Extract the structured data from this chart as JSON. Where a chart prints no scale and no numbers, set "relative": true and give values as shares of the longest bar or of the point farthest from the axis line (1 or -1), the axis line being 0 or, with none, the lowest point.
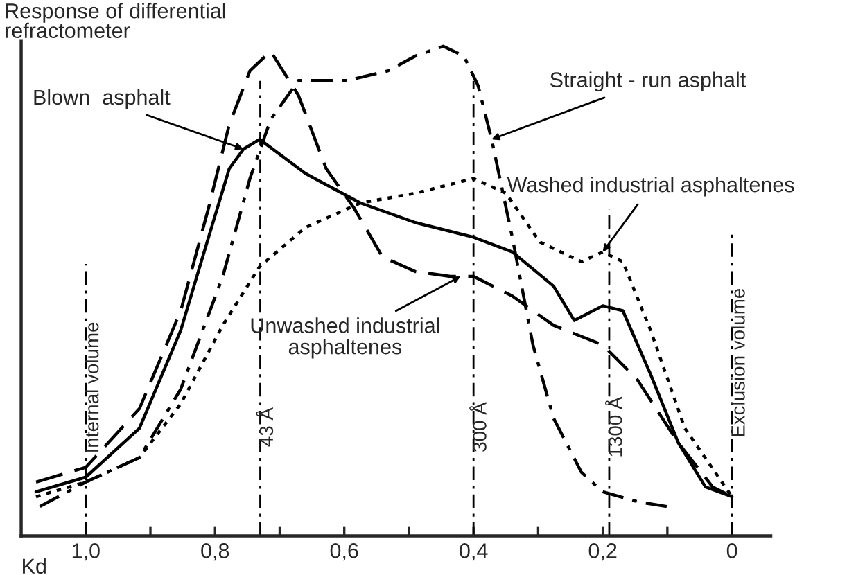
{
  "chart_data": {
    "type": "line",
    "relative": true,
    "xlabel": "Kd",
    "ylabel": "Response of differential\nrefractometer",
    "xlim": [
      1.1,
      -0.06
    ],
    "xticks": [
      {
        "value": 1.0,
        "label": "1,0"
      },
      {
        "value": 0.9,
        "label": null
      },
      {
        "value": 0.8,
        "label": "0,8"
      },
      {
        "value": 0.7,
        "label": null
      },
      {
        "value": 0.6,
        "label": "0,6"
      },
      {
        "value": 0.5,
        "label": null
      },
      {
        "value": 0.4,
        "label": "0,4"
      },
      {
        "value": 0.3,
        "label": null
      },
      {
        "value": 0.2,
        "label": "0,2"
      },
      {
        "value": 0.1,
        "label": null
      },
      {
        "value": 0,
        "label": "0"
      }
    ],
    "grid": false,
    "legend": false,
    "series": [
      {
        "color": "#000000",
        "line_style": "solid",
        "x": [
          1.077,
          1.0,
          0.917,
          0.853,
          0.81,
          0.778,
          0.756,
          0.731,
          0.66,
          0.575,
          0.49,
          0.4,
          0.34,
          0.276,
          0.244,
          0.2,
          0.169,
          0.126,
          0.083,
          0.041,
          0
        ],
        "values": [
          0.09,
          0.12,
          0.22,
          0.42,
          0.61,
          0.75,
          0.79,
          0.81,
          0.74,
          0.68,
          0.64,
          0.61,
          0.58,
          0.51,
          0.44,
          0.47,
          0.46,
          0.33,
          0.19,
          0.1,
          0.08
        ]
      },
      {
        "color": "#000000",
        "line_style": "dashed",
        "x": [
          1.077,
          1.0,
          0.917,
          0.853,
          0.81,
          0.778,
          0.746,
          0.714,
          0.671,
          0.628,
          0.585,
          0.541,
          0.49,
          0.436,
          0.4,
          0.34,
          0.276,
          0.2,
          0.147,
          0.083,
          0.03,
          0
        ],
        "values": [
          0.11,
          0.14,
          0.26,
          0.46,
          0.67,
          0.84,
          0.95,
          0.99,
          0.9,
          0.75,
          0.67,
          0.57,
          0.54,
          0.53,
          0.53,
          0.49,
          0.43,
          0.39,
          0.32,
          0.19,
          0.1,
          0.08
        ]
      },
      {
        "color": "#000000",
        "line_style": "dotted",
        "x": [
          1.077,
          1.0,
          0.917,
          0.853,
          0.788,
          0.731,
          0.66,
          0.575,
          0.49,
          0.4,
          0.35,
          0.297,
          0.233,
          0.2,
          0.169,
          0.126,
          0.073,
          0
        ],
        "values": [
          0.08,
          0.11,
          0.16,
          0.27,
          0.43,
          0.55,
          0.63,
          0.68,
          0.7,
          0.73,
          0.7,
          0.6,
          0.56,
          0.58,
          0.56,
          0.42,
          0.22,
          0.08
        ]
      },
      {
        "color": "#000000",
        "line_style": "dashdot",
        "x": [
          1.071,
          1.0,
          0.917,
          0.853,
          0.788,
          0.746,
          0.714,
          0.671,
          0.596,
          0.532,
          0.49,
          0.447,
          0.415,
          0.393,
          0.372,
          0.34,
          0.308,
          0.276,
          0.233,
          0.2,
          0.147,
          0.101
        ],
        "values": [
          0.06,
          0.11,
          0.16,
          0.3,
          0.53,
          0.73,
          0.85,
          0.93,
          0.93,
          0.95,
          0.98,
          1.0,
          0.98,
          0.92,
          0.81,
          0.61,
          0.39,
          0.24,
          0.13,
          0.09,
          0.07,
          0.06
        ]
      }
    ],
    "ref_lines": [
      {
        "axis": "x",
        "value": 1.0,
        "label": "Internal volume",
        "color": "#000000",
        "line_style": "dashdot"
      },
      {
        "axis": "x",
        "value": 0.73,
        "label": "43 Å",
        "color": "#000000",
        "line_style": "dashdot"
      },
      {
        "axis": "x",
        "value": 0.4,
        "label": "300 Å",
        "color": "#000000",
        "line_style": "dashdot"
      },
      {
        "axis": "x",
        "value": 0.19,
        "label": "1300 Å",
        "color": "#000000",
        "line_style": "dashdot"
      },
      {
        "axis": "x",
        "value": 0,
        "label": "Exclusion volume",
        "color": "#000000",
        "line_style": "dashdot"
      }
    ],
    "annotations": [
      {
        "text": "Blown  asphalt",
        "x": 0.756,
        "y": 0.79
      },
      {
        "text": "Unwashed industrial\nasphaltenes",
        "x": 0.42,
        "y": 0.53
      },
      {
        "text": "Straight - run asphalt",
        "x": 0.372,
        "y": 0.81
      },
      {
        "text": "Washed industrial asphaltenes",
        "x": 0.2,
        "y": 0.58
      }
    ]
  }
}
